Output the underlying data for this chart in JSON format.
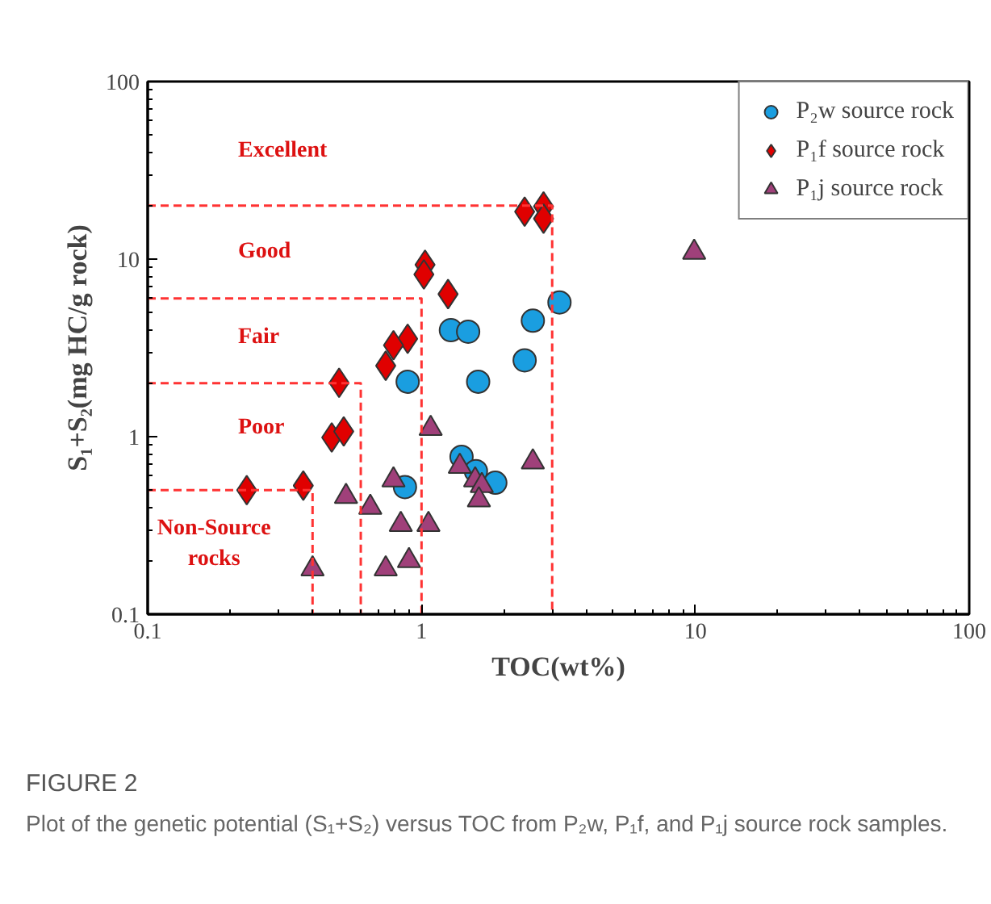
{
  "chart_data": {
    "type": "scatter",
    "xlabel": "TOC(wt%)",
    "ylabel": "S₁+S₂(mg HC/g rock)",
    "log": "xy",
    "xlim": [
      0.1,
      100
    ],
    "ylim": [
      0.1,
      100
    ],
    "xticks": [
      0.1,
      1,
      10,
      100
    ],
    "yticks": [
      0.1,
      1,
      10,
      100
    ],
    "grid": false,
    "legend": "top right",
    "series": [
      {
        "name": "P₂w source rock",
        "color": "#1a9ee0",
        "marker": "circle",
        "x": [
          0.89,
          1.61,
          2.38,
          1.28,
          1.48,
          2.55,
          3.19,
          1.4,
          1.58,
          1.86,
          0.87
        ],
        "values": [
          2.04,
          2.04,
          2.69,
          3.98,
          3.9,
          4.5,
          5.7,
          0.77,
          0.64,
          0.55,
          0.52
        ]
      },
      {
        "name": "P₁f source rock",
        "color": "#e00000",
        "marker": "diamond",
        "x": [
          2.38,
          2.79,
          2.79,
          1.03,
          1.02,
          1.25,
          0.89,
          0.79,
          0.74,
          0.5,
          0.47,
          0.52,
          0.23,
          0.37
        ],
        "values": [
          18.5,
          19.8,
          16.9,
          9.3,
          8.2,
          6.35,
          3.56,
          3.27,
          2.51,
          2.01,
          0.99,
          1.07,
          0.5,
          0.53
        ]
      },
      {
        "name": "P₁j source rock",
        "color": "#a0407a",
        "marker": "triangle",
        "x": [
          1.08,
          2.55,
          1.38,
          0.79,
          1.57,
          1.66,
          1.62,
          0.53,
          0.65,
          0.84,
          1.06,
          0.4,
          0.74,
          0.9,
          9.9
        ],
        "values": [
          1.11,
          0.72,
          0.68,
          0.57,
          0.57,
          0.53,
          0.44,
          0.46,
          0.4,
          0.32,
          0.32,
          0.18,
          0.18,
          0.2,
          10.9
        ]
      },
      {
        "type": "line",
        "color": "#ff3333",
        "line_style": "dashed",
        "x": [
          0.1,
          0.4,
          0.4
        ],
        "values": [
          0.5,
          0.5,
          0.1
        ]
      },
      {
        "type": "line",
        "color": "#ff3333",
        "line_style": "dashed",
        "x": [
          0.1,
          0.6,
          0.6
        ],
        "values": [
          2,
          2,
          0.1
        ]
      },
      {
        "type": "line",
        "color": "#ff3333",
        "line_style": "dashed",
        "x": [
          0.1,
          1,
          1
        ],
        "values": [
          6,
          6,
          0.1
        ]
      },
      {
        "type": "line",
        "color": "#ff3333",
        "line_style": "dashed",
        "x": [
          0.1,
          3,
          3
        ],
        "values": [
          20,
          20,
          0.1
        ]
      }
    ],
    "annotations": [
      "Excellent",
      "Good",
      "Fair",
      "Poor",
      "Non-Source\nrocks",
      "FIGURE 2",
      "Plot of the genetic potential (S₁+S₂) versus TOC from P₂w, P₁f, and P₁j source rock samples."
    ]
  }
}
